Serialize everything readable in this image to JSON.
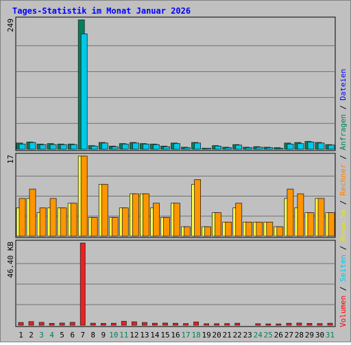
{
  "chart_data": {
    "type": "bar",
    "title": "Tages-Statistik im Monat Januar 2026",
    "categories": [
      "1",
      "2",
      "3",
      "4",
      "5",
      "6",
      "7",
      "8",
      "9",
      "10",
      "11",
      "12",
      "13",
      "14",
      "15",
      "16",
      "17",
      "18",
      "19",
      "20",
      "21",
      "22",
      "23",
      "24",
      "25",
      "26",
      "27",
      "28",
      "29",
      "30",
      "31"
    ],
    "weekend_days": [
      "3",
      "4",
      "10",
      "11",
      "17",
      "18",
      "24",
      "25",
      "31"
    ],
    "panels": [
      {
        "name": "hits",
        "max_label": "249",
        "ymax": 249,
        "legend": [
          {
            "label": "Anfragen",
            "color": "#00805c"
          },
          {
            "label": "Dateien",
            "color": "#0000ff"
          }
        ],
        "series": [
          {
            "name": "Anfragen",
            "color": "#00805c",
            "values": [
              12,
              14,
              10,
              11,
              10,
              10,
              249,
              7,
              13,
              6,
              11,
              13,
              11,
              10,
              6,
              12,
              4,
              13,
              2,
              7,
              4,
              9,
              4,
              5,
              4,
              3,
              12,
              13,
              15,
              13,
              9
            ]
          },
          {
            "name": "Dateien",
            "color": "#00c8e8",
            "values": [
              10,
              13,
              9,
              9,
              9,
              9,
              222,
              6,
              12,
              5,
              10,
              12,
              10,
              9,
              5,
              11,
              3,
              12,
              2,
              6,
              3,
              8,
              3,
              4,
              3,
              2,
              10,
              11,
              14,
              12,
              8
            ]
          }
        ]
      },
      {
        "name": "visits",
        "max_label": "17",
        "ymax": 17,
        "legend": [
          {
            "label": "Seiten",
            "color": "#00c8e8"
          },
          {
            "label": "Besuche",
            "color": "#e8e800"
          },
          {
            "label": "Rechner",
            "color": "#ff8000"
          }
        ],
        "series": [
          {
            "name": "Besuche",
            "color": "#ffff44",
            "values": [
              6,
              8,
              5,
              6,
              6,
              7,
              17,
              4,
              11,
              4,
              6,
              9,
              9,
              6,
              4,
              7,
              2,
              11,
              2,
              5,
              3,
              6,
              3,
              3,
              3,
              2,
              8,
              6,
              5,
              8,
              5
            ]
          },
          {
            "name": "Rechner",
            "color": "#ff9500",
            "values": [
              8,
              10,
              6,
              8,
              6,
              7,
              17,
              4,
              11,
              4,
              6,
              9,
              9,
              7,
              4,
              7,
              2,
              12,
              2,
              5,
              3,
              7,
              3,
              3,
              3,
              2,
              10,
              9,
              5,
              8,
              5
            ]
          }
        ]
      },
      {
        "name": "volume",
        "max_label": "46.40 KB",
        "ymax": 46.4,
        "legend": [
          {
            "label": "Volumen",
            "color": "#ff0000"
          }
        ],
        "series": [
          {
            "name": "Volumen",
            "color": "#ee2020",
            "values": [
              1.5,
              2.0,
              1.6,
              1.0,
              1.2,
              1.6,
              46.4,
              1.1,
              1.0,
              1.1,
              2.2,
              1.9,
              1.5,
              1.1,
              1.2,
              1.1,
              0.9,
              1.8,
              0.8,
              0.8,
              0.9,
              1.1,
              0,
              0.8,
              0.7,
              0.7,
              1.1,
              1.2,
              1.0,
              0.9,
              1.1
            ]
          }
        ]
      }
    ]
  }
}
